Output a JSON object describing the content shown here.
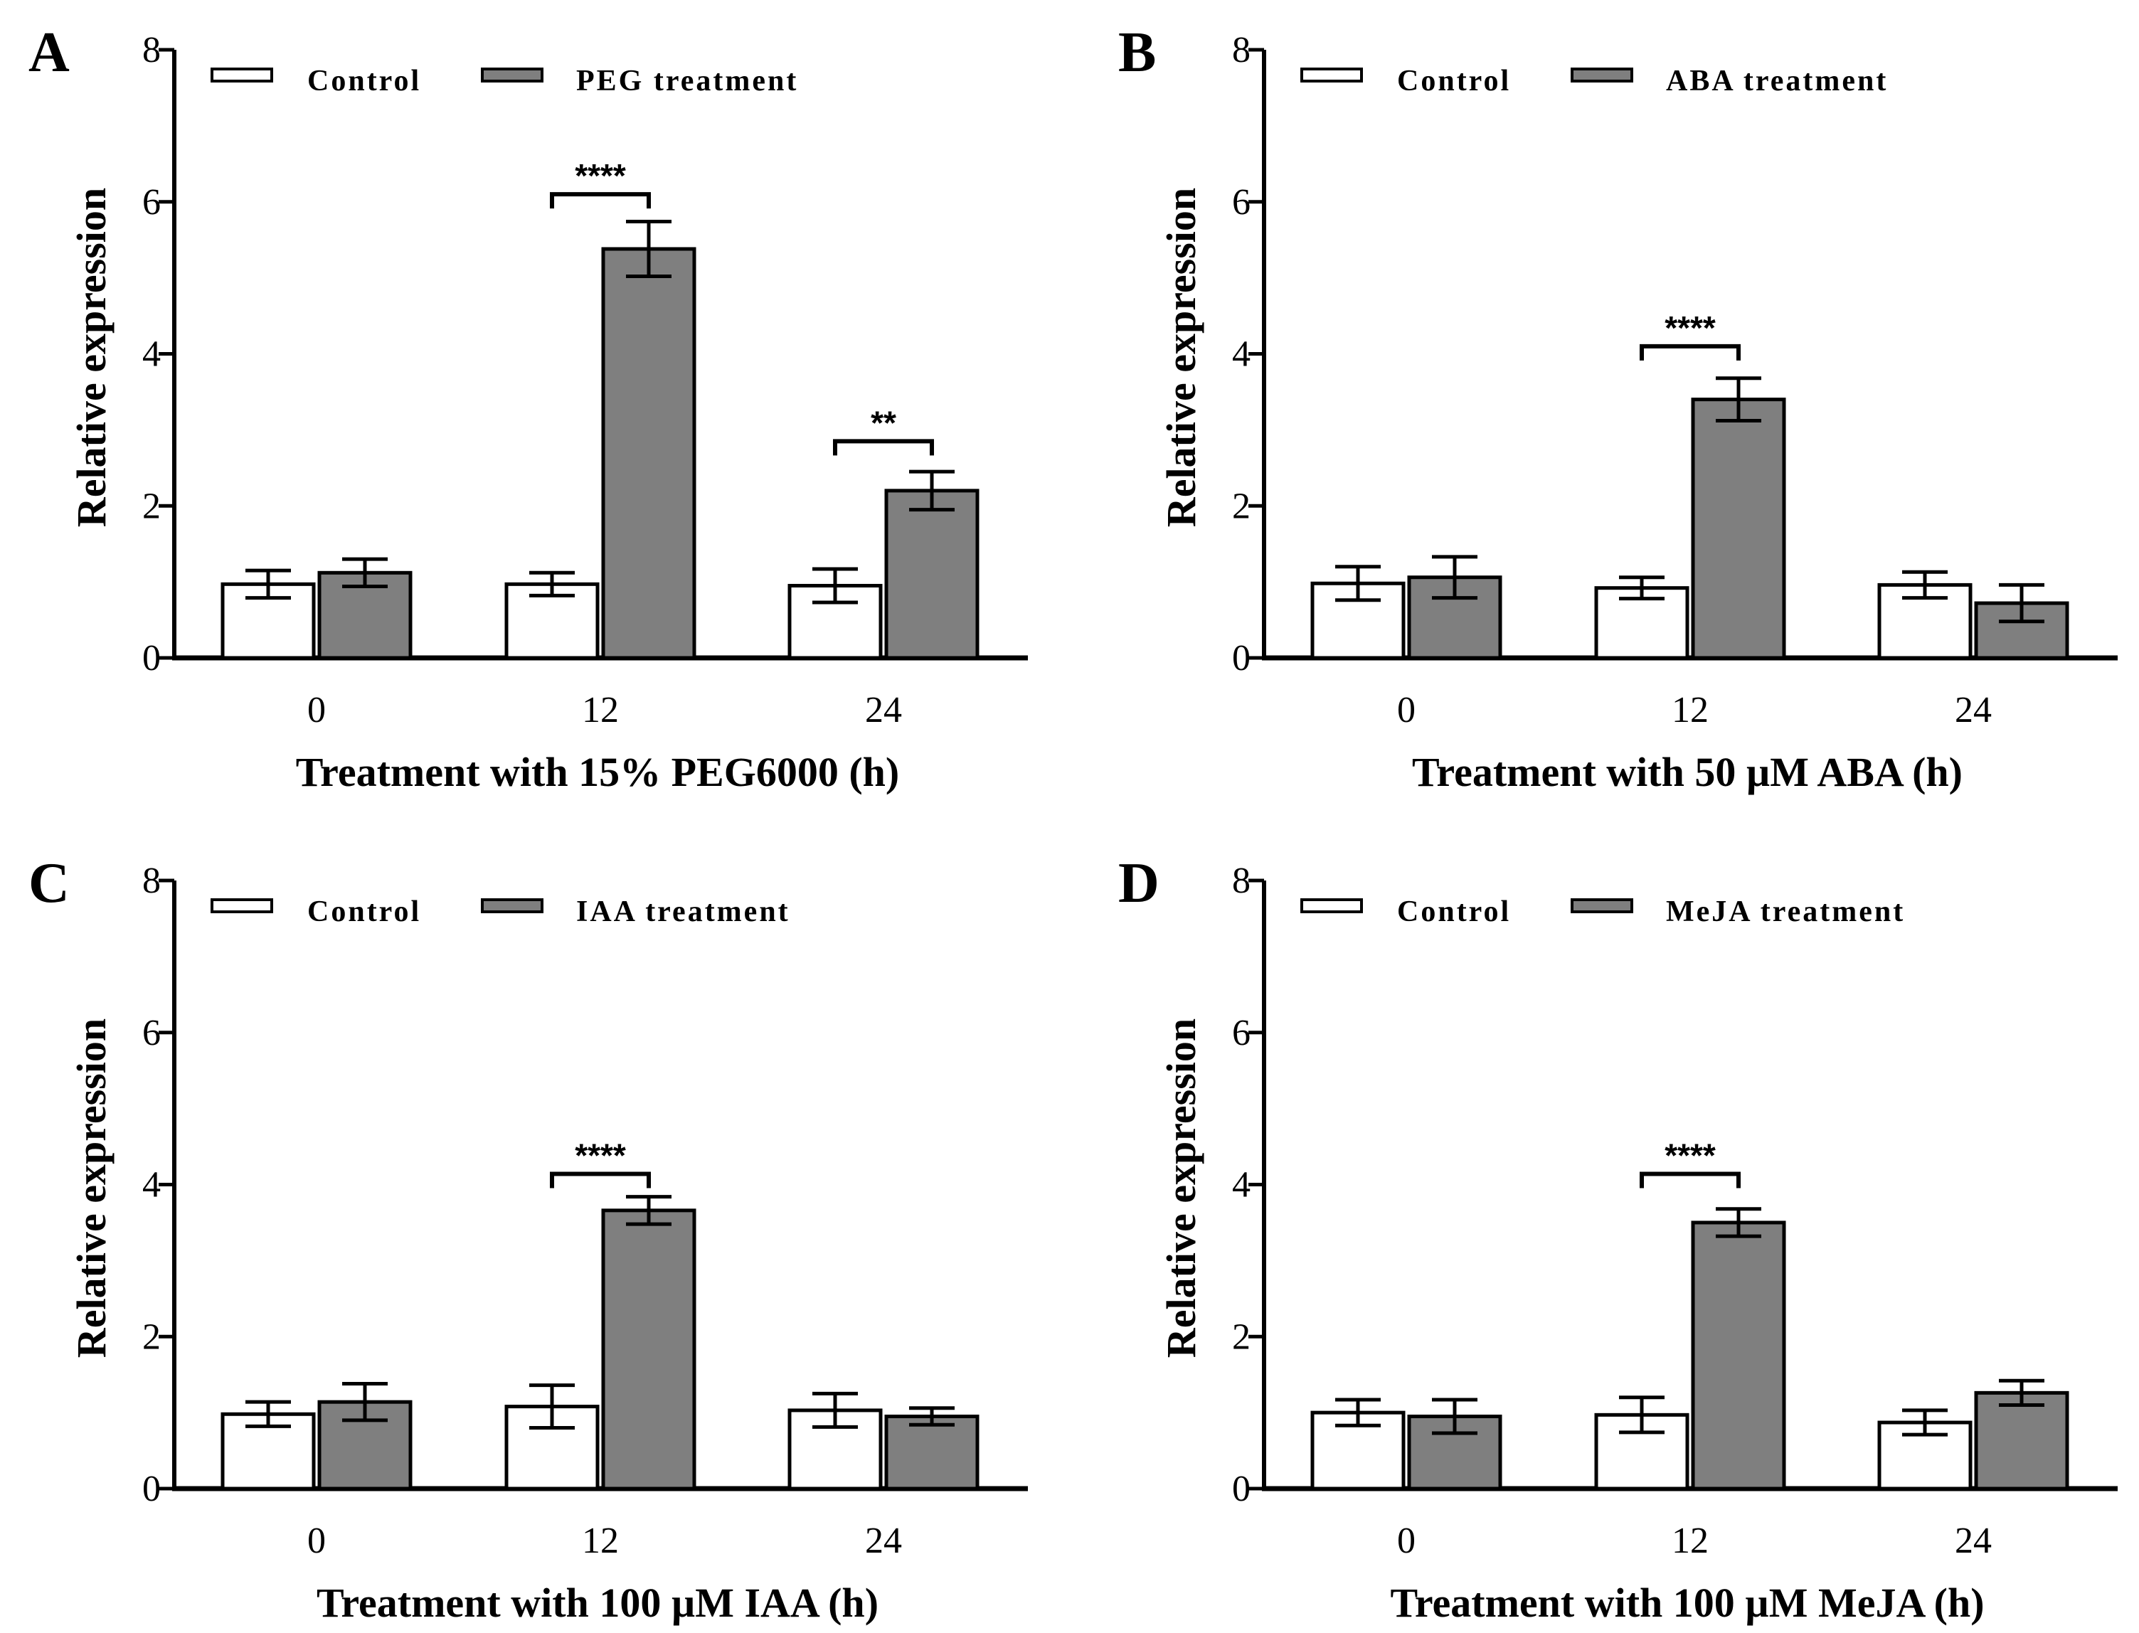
{
  "colors": {
    "control": "#ffffff",
    "treatment": "#7f7f7f",
    "stroke": "#000000"
  },
  "chart_data": [
    {
      "type": "bar",
      "panel_label": "A",
      "xlabel": "Treatment with 15% PEG6000 (h)",
      "ylabel": "Relative expression",
      "ylim": [
        0,
        8
      ],
      "yticks": [
        "0",
        "2",
        "4",
        "6",
        "8"
      ],
      "categories": [
        "0",
        "12",
        "24"
      ],
      "series": [
        {
          "name": "Control",
          "values": [
            0.97,
            0.97,
            0.95
          ],
          "errors": [
            0.18,
            0.15,
            0.22
          ]
        },
        {
          "name": "PEG treatment",
          "values": [
            1.12,
            5.38,
            2.2
          ],
          "errors": [
            0.18,
            0.36,
            0.25
          ]
        }
      ],
      "significance": [
        {
          "category": "12",
          "label": "****",
          "y": 6.1
        },
        {
          "category": "24",
          "label": "**",
          "y": 2.85
        }
      ]
    },
    {
      "type": "bar",
      "panel_label": "B",
      "xlabel": "Treatment with 50 µM ABA (h)",
      "ylabel": "Relative expression",
      "ylim": [
        0,
        8
      ],
      "yticks": [
        "0",
        "2",
        "4",
        "6",
        "8"
      ],
      "categories": [
        "0",
        "12",
        "24"
      ],
      "series": [
        {
          "name": "Control",
          "values": [
            0.98,
            0.92,
            0.96
          ],
          "errors": [
            0.22,
            0.14,
            0.17
          ]
        },
        {
          "name": "ABA treatment",
          "values": [
            1.06,
            3.4,
            0.72
          ],
          "errors": [
            0.27,
            0.28,
            0.24
          ]
        }
      ],
      "significance": [
        {
          "category": "12",
          "label": "****",
          "y": 4.1
        }
      ]
    },
    {
      "type": "bar",
      "panel_label": "C",
      "xlabel": "Treatment with 100 µM IAA (h)",
      "ylabel": "Relative expression",
      "ylim": [
        0,
        8
      ],
      "yticks": [
        "0",
        "2",
        "4",
        "6",
        "8"
      ],
      "categories": [
        "0",
        "12",
        "24"
      ],
      "series": [
        {
          "name": "Control",
          "values": [
            0.98,
            1.08,
            1.03
          ],
          "errors": [
            0.16,
            0.28,
            0.22
          ]
        },
        {
          "name": "IAA treatment",
          "values": [
            1.14,
            3.66,
            0.95
          ],
          "errors": [
            0.24,
            0.18,
            0.11
          ]
        }
      ],
      "significance": [
        {
          "category": "12",
          "label": "****",
          "y": 4.14
        }
      ]
    },
    {
      "type": "bar",
      "panel_label": "D",
      "xlabel": "Treatment with 100 µM MeJA (h)",
      "ylabel": "Relative expression",
      "ylim": [
        0,
        8
      ],
      "yticks": [
        "0",
        "2",
        "4",
        "6",
        "8"
      ],
      "categories": [
        "0",
        "12",
        "24"
      ],
      "series": [
        {
          "name": "Control",
          "values": [
            1.0,
            0.97,
            0.87
          ],
          "errors": [
            0.17,
            0.23,
            0.16
          ]
        },
        {
          "name": "MeJA treatment",
          "values": [
            0.95,
            3.5,
            1.26
          ],
          "errors": [
            0.22,
            0.18,
            0.16
          ]
        }
      ],
      "significance": [
        {
          "category": "12",
          "label": "****",
          "y": 4.14
        }
      ]
    }
  ]
}
